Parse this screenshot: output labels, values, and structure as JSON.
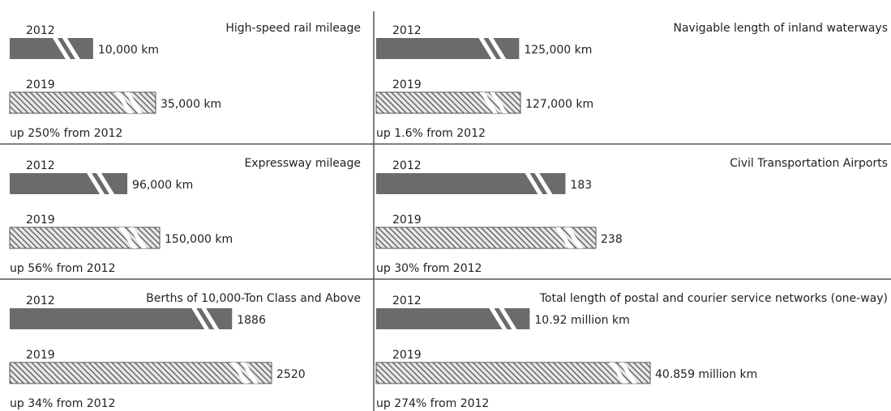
{
  "chart_data": [
    {
      "type": "bar",
      "title": "High-speed rail mileage",
      "categories": [
        "2012",
        "2019"
      ],
      "values": [
        10000,
        35000
      ],
      "value_labels": [
        "10,000 km",
        "35,000 km"
      ],
      "annotation": "up 250% from 2012",
      "color": "#6b6b6b"
    },
    {
      "type": "bar",
      "title": "Navigable length of inland waterways",
      "categories": [
        "2012",
        "2019"
      ],
      "values": [
        125000,
        127000
      ],
      "value_labels": [
        "125,000 km",
        "127,000 km"
      ],
      "annotation": "up 1.6% from 2012",
      "color": "#6b6b6b"
    },
    {
      "type": "bar",
      "title": "Expressway mileage",
      "categories": [
        "2012",
        "2019"
      ],
      "values": [
        96000,
        150000
      ],
      "value_labels": [
        "96,000 km",
        "150,000 km"
      ],
      "annotation": "up 56% from 2012",
      "color": "#6b6b6b"
    },
    {
      "type": "bar",
      "title": "Civil Transportation Airports",
      "categories": [
        "2012",
        "2019"
      ],
      "values": [
        183,
        238
      ],
      "value_labels": [
        "183",
        "238"
      ],
      "annotation": "up 30% from 2012",
      "color": "#6b6b6b"
    },
    {
      "type": "bar",
      "title": "Berths of 10,000-Ton Class and Above",
      "categories": [
        "2012",
        "2019"
      ],
      "values": [
        1886,
        2520
      ],
      "annotation": "up 34% from 2012",
      "color": "#6b6b6b"
    },
    {
      "type": "bar",
      "title": "Total length of postal and courier service networks (one-way)",
      "categories": [
        "2012",
        "2019"
      ],
      "values": [
        10.92,
        40.859
      ],
      "value_labels": [
        "10.92 million km",
        "40.859 million km"
      ],
      "annotation": "up 274% from 2012",
      "color": "#6b6b6b"
    }
  ]
}
